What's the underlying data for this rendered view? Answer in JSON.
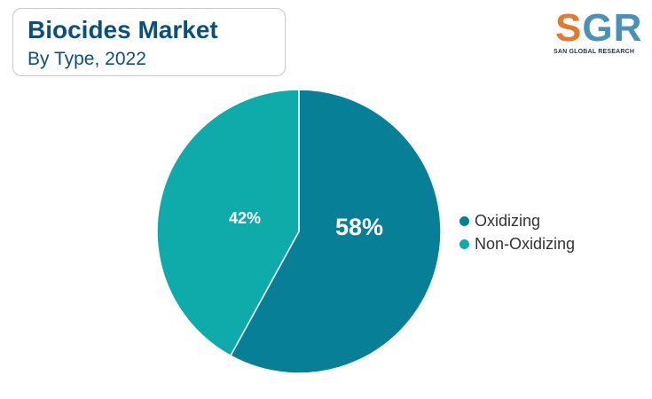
{
  "header": {
    "title": "Biocides Market",
    "subtitle": "By Type, 2022"
  },
  "logo": {
    "mark": "SGR",
    "tagline": "SAN GLOBAL RESEARCH",
    "colors": [
      "#e8772e",
      "#4a90b8"
    ]
  },
  "chart_data": {
    "type": "pie",
    "title": "Biocides Market",
    "subtitle": "By Type, 2022",
    "start": "top",
    "direction": "clockwise",
    "slices": [
      {
        "label": "Oxidizing",
        "value": 58,
        "display": "58%",
        "color": "#077f97"
      },
      {
        "label": "Non-Oxidizing",
        "value": 42,
        "display": "42%",
        "color": "#0fabab"
      }
    ],
    "legend": {
      "position": "right"
    }
  }
}
